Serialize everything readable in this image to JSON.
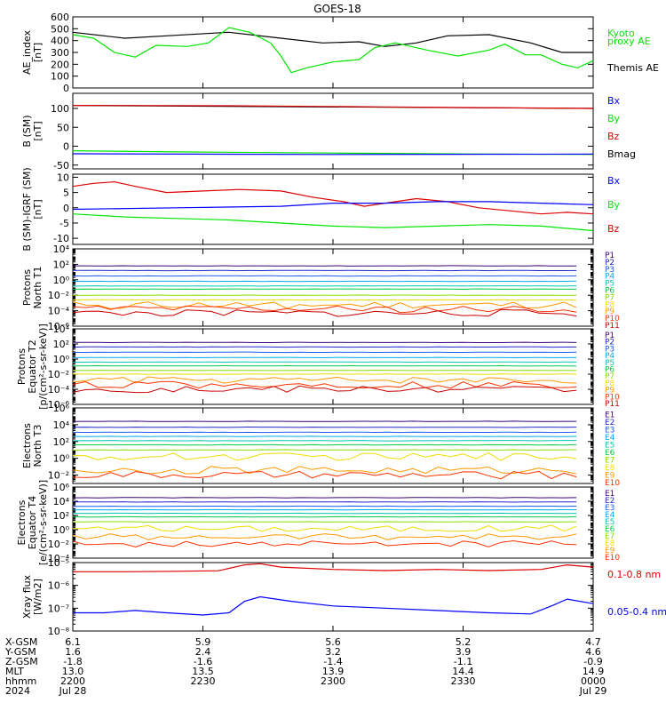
{
  "title": "GOES-18",
  "colors": {
    "green": "#00e600",
    "black": "#000000",
    "blue": "#0000ff",
    "red": "#dd0000",
    "p_palette": [
      "#000000",
      "#3c0078",
      "#2222cc",
      "#1a5af0",
      "#00aaee",
      "#00c8b4",
      "#00cc44",
      "#88dd00",
      "#eedd00",
      "#ff9900",
      "#ff3300",
      "#cc0000"
    ]
  },
  "chart_data": [
    {
      "id": "ae",
      "type": "line",
      "ylabel": [
        "AE_index",
        "[nT]"
      ],
      "ylim": [
        0,
        600
      ],
      "yticks": [
        "0",
        "100",
        "200",
        "300",
        "400",
        "500",
        "600"
      ],
      "yvals": [
        0,
        100,
        200,
        300,
        400,
        500,
        600
      ],
      "legend": [
        "Kyoto",
        "proxy AE",
        "Themis AE"
      ],
      "series": [
        {
          "name": "Themis AE",
          "color": "black",
          "x": [
            0,
            0.06,
            0.1,
            0.18,
            0.3,
            0.4,
            0.48,
            0.55,
            0.6,
            0.66,
            0.72,
            0.8,
            0.88,
            0.94,
            1
          ],
          "y": [
            470,
            440,
            420,
            440,
            470,
            420,
            380,
            390,
            350,
            380,
            440,
            450,
            380,
            300,
            300
          ]
        },
        {
          "name": "Kyoto proxy AE",
          "color": "green",
          "x": [
            0,
            0.04,
            0.08,
            0.12,
            0.16,
            0.22,
            0.26,
            0.3,
            0.34,
            0.38,
            0.4,
            0.42,
            0.45,
            0.5,
            0.55,
            0.58,
            0.62,
            0.68,
            0.74,
            0.8,
            0.83,
            0.87,
            0.9,
            0.94,
            0.97,
            1
          ],
          "y": [
            450,
            420,
            300,
            260,
            360,
            350,
            380,
            510,
            470,
            380,
            270,
            130,
            170,
            220,
            240,
            340,
            380,
            320,
            270,
            320,
            370,
            280,
            280,
            200,
            170,
            230
          ]
        }
      ]
    },
    {
      "id": "b",
      "type": "line",
      "ylabel": [
        "B (SM)",
        "[nT]"
      ],
      "ylim": [
        -60,
        140
      ],
      "yticks": [
        "-50",
        "0",
        "50",
        "100"
      ],
      "yvals": [
        -50,
        0,
        50,
        100
      ],
      "legend": [
        "Bx",
        "By",
        "Bz",
        "Bmag"
      ],
      "series": [
        {
          "name": "Bmag",
          "color": "black",
          "x": [
            0,
            1
          ],
          "y": [
            108,
            100
          ]
        },
        {
          "name": "Bz",
          "color": "red",
          "x": [
            0,
            0.3,
            0.6,
            1
          ],
          "y": [
            108,
            107,
            104,
            100
          ]
        },
        {
          "name": "By",
          "color": "green",
          "x": [
            0,
            0.2,
            0.5,
            0.8,
            1
          ],
          "y": [
            -12,
            -15,
            -18,
            -21,
            -22
          ]
        },
        {
          "name": "Bx",
          "color": "blue",
          "x": [
            0,
            0.5,
            1
          ],
          "y": [
            -20,
            -22,
            -21
          ]
        }
      ]
    },
    {
      "id": "bd",
      "type": "line",
      "ylabel": [
        "B (SM)-IGRF (SM)",
        "[nT]"
      ],
      "ylim": [
        -12,
        11
      ],
      "yticks": [
        "-10",
        "-5",
        "0",
        "5",
        "10"
      ],
      "yvals": [
        -10,
        -5,
        0,
        5,
        10
      ],
      "legend": [
        "Bx",
        "By",
        "Bz"
      ],
      "series": [
        {
          "name": "Bz",
          "color": "red",
          "x": [
            0,
            0.04,
            0.08,
            0.12,
            0.18,
            0.25,
            0.32,
            0.4,
            0.46,
            0.52,
            0.56,
            0.6,
            0.66,
            0.72,
            0.78,
            0.84,
            0.9,
            0.95,
            1
          ],
          "y": [
            7,
            8,
            8.5,
            7,
            5,
            5.5,
            6,
            5.5,
            3.5,
            2,
            0.5,
            1.5,
            3,
            2,
            0,
            -1,
            -2,
            -1.5,
            -2
          ]
        },
        {
          "name": "Bx",
          "color": "blue",
          "x": [
            0,
            0.2,
            0.4,
            0.5,
            0.6,
            0.7,
            0.8,
            0.9,
            1
          ],
          "y": [
            -0.5,
            0,
            0.5,
            1.5,
            1.5,
            2,
            2,
            1.5,
            1
          ]
        },
        {
          "name": "By",
          "color": "green",
          "x": [
            0,
            0.1,
            0.2,
            0.3,
            0.4,
            0.5,
            0.6,
            0.7,
            0.8,
            0.9,
            1
          ],
          "y": [
            -2,
            -3,
            -3.5,
            -4,
            -5,
            -6,
            -6.5,
            -6,
            -5.5,
            -6,
            -7.5
          ]
        }
      ]
    },
    {
      "id": "pn",
      "type": "line",
      "ylabel": [
        "Protons",
        "North T1"
      ],
      "ylog": true,
      "ylim_exp": [
        -6,
        4
      ],
      "yticks": [
        "10⁴",
        "10²",
        "10⁰",
        "10⁻²",
        "10⁻⁴",
        "10⁻⁶"
      ],
      "yexp": [
        4,
        2,
        0,
        -2,
        -4,
        -6
      ],
      "channels": [
        "P1",
        "P2",
        "P3",
        "P4",
        "P5",
        "P6",
        "P7",
        "P8",
        "P9",
        "P10",
        "P11"
      ],
      "levels_exp": [
        1.8,
        1.2,
        0.5,
        -0.2,
        -0.8,
        -1.2,
        -2,
        -2.6,
        -3.3,
        -3.8,
        -4.3
      ]
    },
    {
      "id": "pe",
      "type": "line",
      "ylabel": [
        "Protons",
        "Equator T2",
        "[p/(cm²-s-sr-keV)]"
      ],
      "ylog": true,
      "ylim_exp": [
        -6,
        4
      ],
      "yticks": [
        "10⁴",
        "10²",
        "10⁰",
        "10⁻²",
        "10⁻⁴",
        "10⁻⁶"
      ],
      "yexp": [
        4,
        2,
        0,
        -2,
        -4,
        -6
      ],
      "channels": [
        "P1",
        "P2",
        "P3",
        "P4",
        "P5",
        "P6",
        "P7",
        "P8",
        "P9",
        "P10",
        "P11"
      ],
      "levels_exp": [
        2.2,
        1.6,
        0.9,
        0.2,
        -0.4,
        -0.9,
        -1.5,
        -2,
        -2.8,
        -3.4,
        -4
      ]
    },
    {
      "id": "en",
      "type": "line",
      "ylabel": [
        "Electrons",
        "North T3"
      ],
      "ylog": true,
      "ylim_exp": [
        -3,
        6
      ],
      "yticks": [
        "10⁶",
        "10⁴",
        "10²",
        "10⁰",
        "10⁻²"
      ],
      "yexp": [
        6,
        4,
        2,
        0,
        -2
      ],
      "channels": [
        "E1",
        "E2",
        "E3",
        "E4",
        "E5",
        "E6",
        "E7",
        "E8",
        "E9",
        "E10"
      ],
      "levels_exp": [
        4.4,
        3.7,
        3.1,
        2.6,
        2.1,
        1.6,
        1,
        0.2,
        -1.4,
        -2
      ]
    },
    {
      "id": "ee",
      "type": "line",
      "ylabel": [
        "Electrons",
        "Equator T4",
        "[e/(cm²-s-sr-keV)]"
      ],
      "ylog": true,
      "ylim_exp": [
        -4,
        6
      ],
      "yticks": [
        "10⁶",
        "10⁴",
        "10²",
        "10⁰",
        "10⁻²",
        "10⁻⁴"
      ],
      "yexp": [
        6,
        4,
        2,
        0,
        -2,
        -4
      ],
      "channels": [
        "E1",
        "E2",
        "E3",
        "E4",
        "E5",
        "E6",
        "E7",
        "E8",
        "E9",
        "E10"
      ],
      "levels_exp": [
        4.5,
        3.9,
        3.3,
        2.8,
        2.3,
        1.8,
        1.1,
        0.2,
        -1,
        -2
      ]
    },
    {
      "id": "xr",
      "type": "line",
      "ylabel": [
        "Xray flux",
        "[W/m2]"
      ],
      "ylog": true,
      "ylim_exp": [
        -8,
        -5
      ],
      "yticks": [
        "10⁻⁵",
        "10⁻⁶",
        "10⁻⁷",
        "10⁻⁸"
      ],
      "yexp": [
        -5,
        -6,
        -7,
        -8
      ],
      "legend": [
        "0.1-0.8 nm",
        "0.05-0.4 nm"
      ],
      "series": [
        {
          "name": "0.1-0.8 nm",
          "color": "red",
          "x": [
            0,
            0.1,
            0.2,
            0.28,
            0.33,
            0.36,
            0.4,
            0.5,
            0.6,
            0.7,
            0.8,
            0.9,
            0.95,
            1
          ],
          "y": [
            -5.4,
            -5.4,
            -5.38,
            -5.36,
            -5.1,
            -5.05,
            -5.2,
            -5.3,
            -5.35,
            -5.3,
            -5.35,
            -5.3,
            -5.1,
            -5.2
          ]
        },
        {
          "name": "0.05-0.4 nm",
          "color": "blue",
          "x": [
            0,
            0.06,
            0.12,
            0.18,
            0.25,
            0.3,
            0.33,
            0.36,
            0.42,
            0.5,
            0.6,
            0.7,
            0.8,
            0.88,
            0.92,
            0.95,
            1
          ],
          "y": [
            -7.2,
            -7.2,
            -7.1,
            -7.2,
            -7.3,
            -7.2,
            -6.7,
            -6.5,
            -6.7,
            -6.9,
            -7.0,
            -7.1,
            -7.2,
            -7.25,
            -6.9,
            -6.6,
            -6.8
          ]
        }
      ]
    }
  ],
  "axis_table": {
    "labels": [
      "X-GSM",
      "Y-GSM",
      "Z-GSM",
      "MLT",
      "hhmm",
      "2024"
    ],
    "columns": [
      [
        "6.1",
        "1.6",
        "-1.8",
        "13.0",
        "2200",
        "Jul 28"
      ],
      [
        "5.9",
        "2.4",
        "-1.6",
        "13.5",
        "2230",
        ""
      ],
      [
        "5.6",
        "3.2",
        "-1.4",
        "13.9",
        "2300",
        ""
      ],
      [
        "5.2",
        "3.9",
        "-1.1",
        "14.4",
        "2330",
        ""
      ],
      [
        "4.7",
        "4.6",
        "-0.9",
        "14.9",
        "0000",
        "Jul 29"
      ]
    ]
  }
}
